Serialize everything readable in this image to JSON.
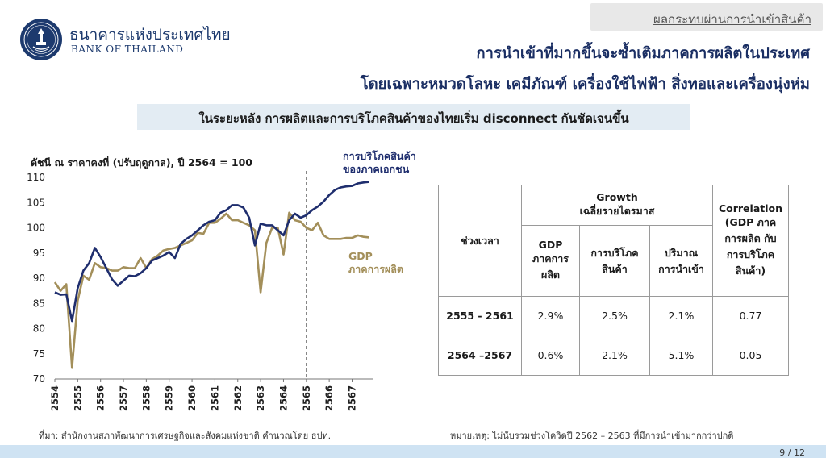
{
  "header": {
    "section_tag": "ผลกระทบผ่านการนำเข้าสินค้า",
    "bank_name_th": "ธนาคารแห่งประเทศไทย",
    "bank_name_en": "BANK OF THAILAND",
    "logo_icon": "bank-of-thailand-seal-icon"
  },
  "headline": {
    "line1": "การนำเข้าที่มากขึ้นจะซ้ำเติมภาคการผลิตในประเทศ",
    "line2": "โดยเฉพาะหมวดโลหะ เคมีภัณฑ์ เครื่องใช้ไฟฟ้า สิ่งทอและเครื่องนุ่งห่ม"
  },
  "subtitle": "ในระยะหลัง การผลิตและการบริโภคสินค้าของไทยเริ่ม disconnect กันชัดเจนขึ้น",
  "chart_data": {
    "type": "line",
    "ylabel": "ดัชนี ณ ราคาคงที่ (ปรับฤดูกาล), ปี 2564 = 100",
    "ylim": [
      70,
      110
    ],
    "yticks": [
      70,
      75,
      80,
      85,
      90,
      95,
      100,
      105,
      110
    ],
    "xlim": [
      2554,
      2567.9
    ],
    "xticks": [
      "2554",
      "2555",
      "2556",
      "2557",
      "2558",
      "2559",
      "2560",
      "2561",
      "2562",
      "2563",
      "2564",
      "2565",
      "2566",
      "2567"
    ],
    "divider_x": 2565,
    "grid": false,
    "series": [
      {
        "name": "การบริโภคสินค้าของภาคเอกชน",
        "label_lines": [
          "การบริโภคสินค้า",
          "ของภาคเอกชน"
        ],
        "color": "#1f2e6e",
        "x": [
          2554,
          2554.25,
          2554.5,
          2554.75,
          2555,
          2555.25,
          2555.5,
          2555.75,
          2556,
          2556.25,
          2556.5,
          2556.75,
          2557,
          2557.25,
          2557.5,
          2557.75,
          2558,
          2558.25,
          2558.5,
          2558.75,
          2559,
          2559.25,
          2559.5,
          2559.75,
          2560,
          2560.25,
          2560.5,
          2560.75,
          2561,
          2561.25,
          2561.5,
          2561.75,
          2562,
          2562.25,
          2562.5,
          2562.75,
          2563,
          2563.25,
          2563.5,
          2563.75,
          2564,
          2564.25,
          2564.5,
          2564.75,
          2565,
          2565.25,
          2565.5,
          2565.75,
          2566,
          2566.25,
          2566.5,
          2566.75,
          2567,
          2567.25,
          2567.5,
          2567.75
        ],
        "values": [
          87.2,
          86.7,
          86.8,
          81.5,
          88.0,
          91.5,
          93.0,
          96.0,
          94.2,
          92.0,
          89.8,
          88.5,
          89.5,
          90.5,
          90.4,
          91.0,
          92.0,
          93.5,
          94.0,
          94.5,
          95.2,
          94.0,
          96.8,
          97.8,
          98.5,
          99.5,
          100.5,
          101.2,
          101.5,
          103.0,
          103.5,
          104.5,
          104.5,
          104.0,
          102.0,
          96.5,
          100.8,
          100.5,
          100.5,
          99.5,
          98.5,
          101.5,
          102.8,
          102.0,
          102.5,
          103.5,
          104.2,
          105.2,
          106.5,
          107.5,
          108.0,
          108.2,
          108.3,
          108.8,
          109.0,
          109.1
        ]
      },
      {
        "name": "GDP ภาคการผลิต",
        "label_lines": [
          "GDP",
          "ภาคการผลิต"
        ],
        "color": "#a38f5a",
        "x": [
          2554,
          2554.25,
          2554.5,
          2554.75,
          2555,
          2555.25,
          2555.5,
          2555.75,
          2556,
          2556.25,
          2556.5,
          2556.75,
          2557,
          2557.25,
          2557.5,
          2557.75,
          2558,
          2558.25,
          2558.5,
          2558.75,
          2559,
          2559.25,
          2559.5,
          2559.75,
          2560,
          2560.25,
          2560.5,
          2560.75,
          2561,
          2561.25,
          2561.5,
          2561.75,
          2562,
          2562.25,
          2562.5,
          2562.75,
          2563,
          2563.25,
          2563.5,
          2563.75,
          2564,
          2564.25,
          2564.5,
          2564.75,
          2565,
          2565.25,
          2565.5,
          2565.75,
          2566,
          2566.25,
          2566.5,
          2566.75,
          2567,
          2567.25,
          2567.5,
          2567.75
        ],
        "values": [
          89.2,
          87.5,
          88.8,
          72.2,
          85.5,
          90.5,
          89.7,
          93.0,
          92.2,
          92.0,
          91.5,
          91.5,
          92.2,
          92.0,
          92.0,
          94.0,
          92.0,
          93.8,
          94.5,
          95.5,
          95.8,
          96.0,
          96.5,
          97.0,
          97.5,
          99.0,
          98.8,
          101.0,
          101.0,
          101.8,
          102.8,
          101.5,
          101.5,
          101.0,
          100.5,
          99.5,
          87.2,
          97.0,
          100.0,
          100.0,
          94.7,
          103.0,
          101.5,
          101.2,
          100.0,
          99.5,
          101.0,
          98.5,
          97.8,
          97.8,
          97.8,
          98.0,
          98.0,
          98.5,
          98.2,
          98.1
        ]
      }
    ]
  },
  "table": {
    "col_period": "ช่วงเวลา",
    "group_header_lines": [
      "Growth",
      "เฉลี่ยรายไตรมาส"
    ],
    "col_gdp_lines": [
      "GDP",
      "ภาคการ",
      "ผลิต"
    ],
    "col_consumption_lines": [
      "การบริโภค",
      "สินค้า"
    ],
    "col_imports_lines": [
      "ปริมาณ",
      "การนำเข้า"
    ],
    "col_corr_lines": [
      "Correlation",
      "(GDP ภาค",
      "การผลิต กับ",
      "การบริโภค",
      "สินค้า)"
    ],
    "rows": [
      {
        "period": "2555 - 2561",
        "gdp": "2.9%",
        "consumption": "2.5%",
        "imports": "2.1%",
        "correlation": "0.77"
      },
      {
        "period": "2564 –2567",
        "gdp": "0.6%",
        "consumption": "2.1%",
        "imports": "5.1%",
        "correlation": "0.05"
      }
    ]
  },
  "footer": {
    "source": "ที่มา: สำนักงานสภาพัฒนาการเศรษฐกิจและสังคมแห่งชาติ คำนวณโดย ธปท.",
    "remark": "หมายเหตุ: ไม่นับรวมช่วงโควิดปี 2562 – 2563 ที่มีการนำเข้ามากกว่าปกติ",
    "page": "9 / 12"
  },
  "colors": {
    "brand_navy": "#1a2e63",
    "subtitle_bg": "#e3ecf3",
    "footer_bg": "#cfe3f3"
  }
}
